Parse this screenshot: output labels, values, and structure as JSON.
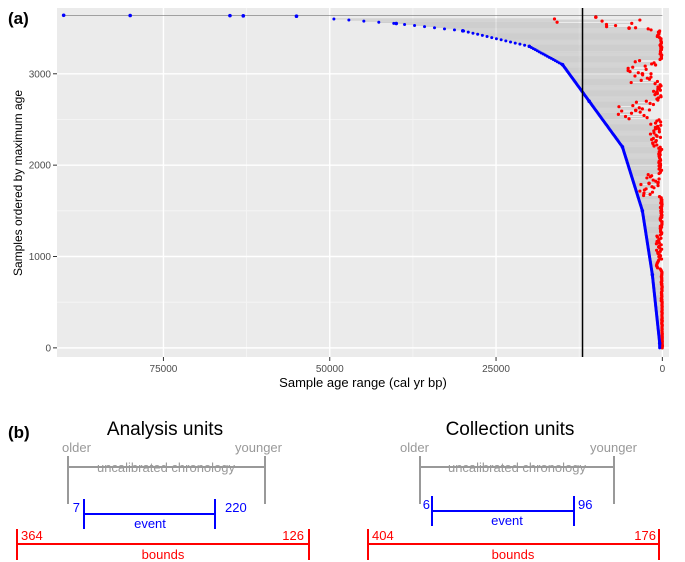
{
  "chart_data": [
    {
      "type": "scatter",
      "panel_label": "(a)",
      "xlabel": "Sample age range (cal yr bp)",
      "ylabel": "Samples ordered by maximum age",
      "x_reversed": true,
      "xlim": [
        91000,
        -1000
      ],
      "ylim": [
        -100,
        3720
      ],
      "x_ticks": [
        75000,
        50000,
        25000,
        0
      ],
      "x_tick_labels": [
        "75000",
        "50000",
        "25000",
        "0"
      ],
      "y_ticks": [
        0,
        1000,
        2000,
        3000
      ],
      "y_tick_labels": [
        "0",
        "1000",
        "2000",
        "3000"
      ],
      "grid": true,
      "background": "#ebebeb",
      "vline_x": 12000,
      "series": [
        {
          "role": "maximum age",
          "color": "#0000ff",
          "points": [
            [
              90000,
              3640
            ],
            [
              80000,
              3638
            ],
            [
              65000,
              3636
            ],
            [
              63000,
              3634
            ],
            [
              55000,
              3630
            ],
            [
              40000,
              3550
            ],
            [
              30000,
              3470
            ],
            [
              20000,
              3300
            ],
            [
              15000,
              3100
            ],
            [
              11000,
              2700
            ],
            [
              6000,
              2200
            ],
            [
              3000,
              1500
            ],
            [
              1500,
              800
            ],
            [
              400,
              50
            ]
          ]
        },
        {
          "role": "minimum age",
          "color": "#ff0000",
          "points": [
            [
              10000,
              3620
            ],
            [
              5000,
              3500
            ],
            [
              500,
              3450
            ],
            [
              200,
              3300
            ],
            [
              3000,
              3000
            ],
            [
              800,
              2800
            ],
            [
              4000,
              2600
            ],
            [
              1000,
              2400
            ],
            [
              300,
              2000
            ],
            [
              2000,
              1800
            ],
            [
              200,
              1500
            ],
            [
              500,
              1000
            ],
            [
              100,
              700
            ],
            [
              50,
              300
            ],
            [
              20,
              20
            ]
          ]
        }
      ]
    },
    {
      "type": "diagram",
      "panel_label": "(b)",
      "panels": [
        {
          "title": "Analysis units",
          "older_label": "older",
          "younger_label": "younger",
          "chronology_label": "uncalibrated chronology",
          "event_label": "event",
          "event_start": "7",
          "event_end": "220",
          "bounds_label": "bounds",
          "bounds_start": "364",
          "bounds_end": "126"
        },
        {
          "title": "Collection units",
          "older_label": "older",
          "younger_label": "younger",
          "chronology_label": "uncalibrated chronology",
          "event_label": "event",
          "event_start": "6",
          "event_end": "96",
          "bounds_label": "bounds",
          "bounds_start": "404",
          "bounds_end": "176"
        }
      ]
    }
  ],
  "colors": {
    "gray": "#999999",
    "blue": "#0000ff",
    "red": "#ff0000",
    "segment": "#555555"
  }
}
